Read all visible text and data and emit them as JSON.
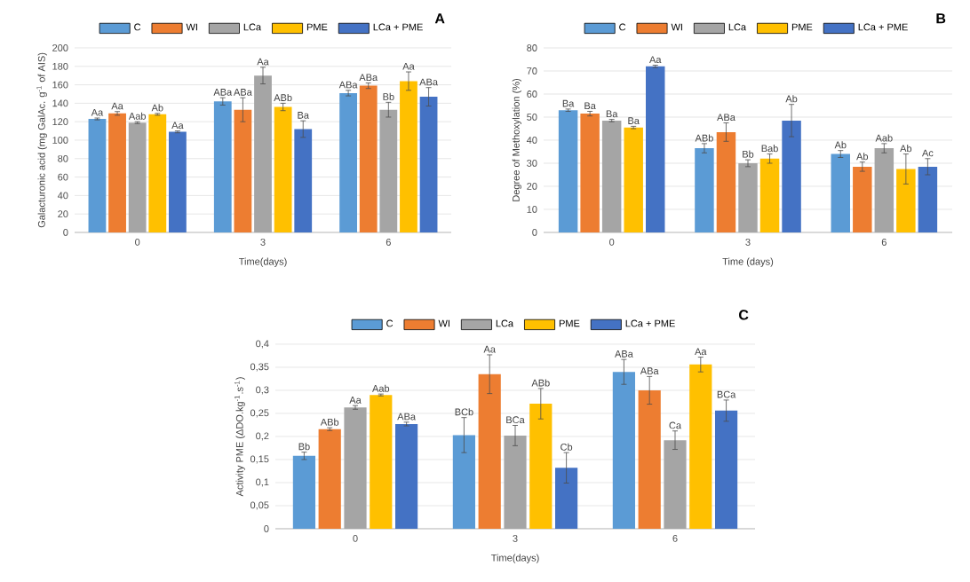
{
  "chart_data": [
    {
      "type": "bar",
      "title": "A",
      "xlabel": "Time(days)",
      "ylabel": "Galacturonic acid (mg GalAc. g$^{-1}$ of AIS)",
      "categories": [
        "0",
        "3",
        "6"
      ],
      "ylim": [
        0,
        200
      ],
      "yticks": [
        0,
        20,
        40,
        60,
        80,
        100,
        120,
        140,
        160,
        180,
        200
      ],
      "grid": "y",
      "legend": "top",
      "series": [
        {
          "name": "C",
          "color": "#5b9bd5",
          "values": [
            123,
            142,
            151
          ],
          "errors": [
            1,
            4,
            3
          ],
          "value_labels": [
            "Aa",
            "ABa",
            "ABa"
          ]
        },
        {
          "name": "WI",
          "color": "#ed7d31",
          "values": [
            129,
            133,
            159
          ],
          "errors": [
            2,
            13,
            3
          ],
          "value_labels": [
            "Aa",
            "ABa",
            "ABa"
          ]
        },
        {
          "name": "LCa",
          "color": "#a5a5a5",
          "values": [
            119,
            170,
            133
          ],
          "errors": [
            1,
            9,
            8
          ],
          "value_labels": [
            "Aab",
            "Aa",
            "Bb"
          ]
        },
        {
          "name": "PME",
          "color": "#ffc000",
          "values": [
            128,
            136,
            164
          ],
          "errors": [
            1,
            4,
            10
          ],
          "value_labels": [
            "Ab",
            "ABb",
            "Aa"
          ]
        },
        {
          "name": "LCa + PME",
          "color": "#4472c4",
          "values": [
            109,
            112,
            147
          ],
          "errors": [
            1,
            9,
            10
          ],
          "value_labels": [
            "Aa",
            "Ba",
            "ABa"
          ]
        }
      ]
    },
    {
      "type": "bar",
      "title": "B",
      "xlabel": "Time (days)",
      "ylabel": "Degree of Methoxylation (%)",
      "categories": [
        "0",
        "3",
        "6"
      ],
      "ylim": [
        0,
        80
      ],
      "yticks": [
        0,
        10,
        20,
        30,
        40,
        50,
        60,
        70,
        80
      ],
      "grid": "y",
      "legend": "top",
      "series": [
        {
          "name": "C",
          "color": "#5b9bd5",
          "values": [
            53,
            36.5,
            34
          ],
          "errors": [
            0.5,
            2,
            1.5
          ],
          "value_labels": [
            "Ba",
            "ABb",
            "Ab"
          ]
        },
        {
          "name": "WI",
          "color": "#ed7d31",
          "values": [
            51.5,
            43.5,
            28.5
          ],
          "errors": [
            1,
            4,
            2
          ],
          "value_labels": [
            "Ba",
            "ABa",
            "Ab"
          ]
        },
        {
          "name": "LCa",
          "color": "#a5a5a5",
          "values": [
            48.5,
            30,
            36.5
          ],
          "errors": [
            0.5,
            1.5,
            2
          ],
          "value_labels": [
            "Ba",
            "Bb",
            "Aab"
          ]
        },
        {
          "name": "PME",
          "color": "#ffc000",
          "values": [
            45.5,
            32,
            27.5
          ],
          "errors": [
            0.5,
            2,
            6.5
          ],
          "value_labels": [
            "Ba",
            "Bab",
            "Ab"
          ]
        },
        {
          "name": "LCa + PME",
          "color": "#4472c4",
          "values": [
            72,
            48.5,
            28.5
          ],
          "errors": [
            0.5,
            7,
            3.5
          ],
          "value_labels": [
            "Aa",
            "Ab",
            "Ac"
          ]
        }
      ]
    },
    {
      "type": "bar",
      "title": "C",
      "xlabel": "Time(days)",
      "ylabel": "Activity PME  (ΔDO.kg$^{-1}$.s$^{-1}$)",
      "categories": [
        "0",
        "3",
        "6"
      ],
      "ylim": [
        0,
        0.4
      ],
      "yticks": [
        0,
        {
          "value": 0.05,
          "label": "0,05"
        },
        {
          "value": 0.1,
          "label": "0,1"
        },
        {
          "value": 0.15,
          "label": "0,15"
        },
        {
          "value": 0.2,
          "label": "0,2"
        },
        {
          "value": 0.25,
          "label": "0,25"
        },
        {
          "value": 0.3,
          "label": "0,3"
        },
        {
          "value": 0.35,
          "label": "0,35"
        },
        {
          "value": 0.4,
          "label": "0,4"
        }
      ],
      "grid": "y",
      "legend": "top",
      "series": [
        {
          "name": "C",
          "color": "#5b9bd5",
          "values": [
            0.158,
            0.203,
            0.34
          ],
          "errors": [
            0.008,
            0.038,
            0.027
          ],
          "value_labels": [
            "Bb",
            "BCb",
            "ABa"
          ]
        },
        {
          "name": "WI",
          "color": "#ed7d31",
          "values": [
            0.216,
            0.335,
            0.3
          ],
          "errors": [
            0.003,
            0.042,
            0.03
          ],
          "value_labels": [
            "ABb",
            "Aa",
            "ABa"
          ]
        },
        {
          "name": "LCa",
          "color": "#a5a5a5",
          "values": [
            0.263,
            0.202,
            0.192
          ],
          "errors": [
            0.004,
            0.022,
            0.02
          ],
          "value_labels": [
            "Aa",
            "BCa",
            "Ca"
          ]
        },
        {
          "name": "PME",
          "color": "#ffc000",
          "values": [
            0.29,
            0.271,
            0.356
          ],
          "errors": [
            0.002,
            0.033,
            0.016
          ],
          "value_labels": [
            "Aab",
            "ABb",
            "Aa"
          ]
        },
        {
          "name": "LCa + PME",
          "color": "#4472c4",
          "values": [
            0.227,
            0.132,
            0.256
          ],
          "errors": [
            0.004,
            0.033,
            0.023
          ],
          "value_labels": [
            "ABa",
            "Cb",
            "BCa"
          ]
        }
      ]
    }
  ]
}
